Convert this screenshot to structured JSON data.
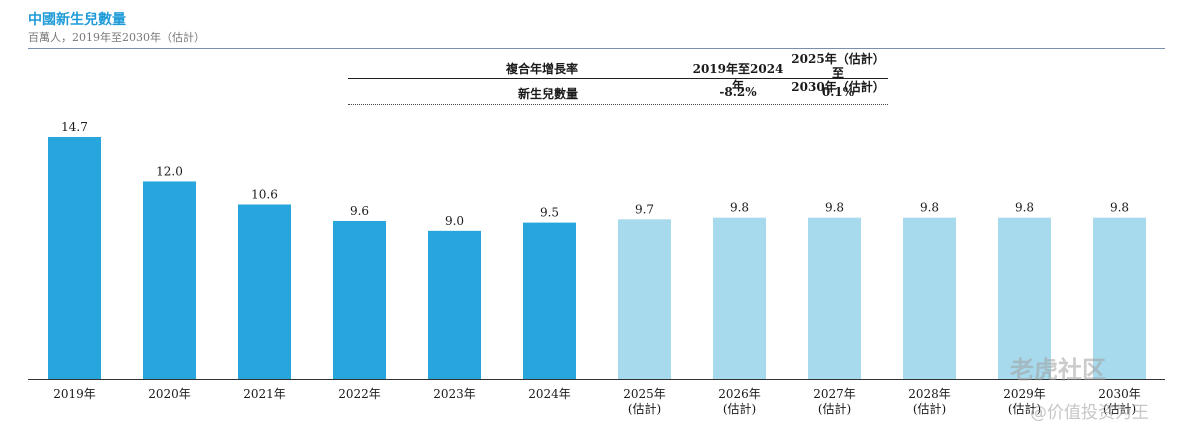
{
  "header": {
    "title": "中國新生兒數量",
    "subtitle": "百萬人，2019年至2030年（估計）"
  },
  "cagr_table": {
    "header_label": "複合年增長率",
    "col1_header": "2019年至2024年",
    "col2_header_line1": "2025年（估計）至",
    "col2_header_line2": "2030年（估計）",
    "row_label": "新生兒數量",
    "col1_value": "-8.2%",
    "col2_value": "0.1%"
  },
  "watermark": {
    "text": "老虎社区",
    "sub": "@价值投资为王"
  },
  "chart_data": {
    "type": "bar",
    "title": "中國新生兒數量",
    "subtitle": "百萬人，2019年至2030年（估計）",
    "categories": [
      "2019年",
      "2020年",
      "2021年",
      "2022年",
      "2023年",
      "2024年",
      "2025年\n(估計)",
      "2026年\n(估計)",
      "2027年\n(估計)",
      "2028年\n(估計)",
      "2029年\n(估計)",
      "2030年\n(估計)"
    ],
    "values": [
      14.7,
      12.0,
      10.6,
      9.6,
      9.0,
      9.5,
      9.7,
      9.8,
      9.8,
      9.8,
      9.8,
      9.8
    ],
    "value_labels": [
      "14.7",
      "12.0",
      "10.6",
      "9.6",
      "9.0",
      "9.5",
      "9.7",
      "9.8",
      "9.8",
      "9.8",
      "9.8",
      "9.8"
    ],
    "estimated": [
      false,
      false,
      false,
      false,
      false,
      false,
      true,
      true,
      true,
      true,
      true,
      true
    ],
    "colors": {
      "actual": "#27a5dd",
      "estimate": "#a8daed"
    },
    "ylim": [
      0,
      14.7
    ],
    "grid": false
  }
}
